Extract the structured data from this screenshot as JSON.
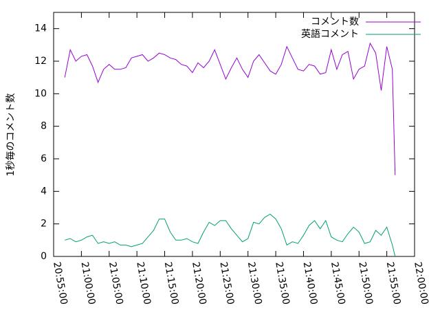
{
  "chart_data": {
    "type": "line",
    "y_label": "1秒毎のコメント数",
    "xlim": [
      "20:55:00",
      "22:00:00"
    ],
    "xticks": [
      "20:55:00",
      "21:00:00",
      "21:05:00",
      "21:10:00",
      "21:15:00",
      "21:20:00",
      "21:25:00",
      "21:30:00",
      "21:35:00",
      "21:40:00",
      "21:45:00",
      "21:50:00",
      "21:55:00",
      "22:00:00"
    ],
    "ylim": [
      0,
      15
    ],
    "yticks": [
      0,
      2,
      4,
      6,
      8,
      10,
      12,
      14
    ],
    "legend": "top-right",
    "x": [
      "20:57:00",
      "20:58:00",
      "20:59:00",
      "21:00:00",
      "21:01:00",
      "21:02:00",
      "21:03:00",
      "21:04:00",
      "21:05:00",
      "21:06:00",
      "21:07:00",
      "21:08:00",
      "21:09:00",
      "21:10:00",
      "21:11:00",
      "21:12:00",
      "21:13:00",
      "21:14:00",
      "21:15:00",
      "21:16:00",
      "21:17:00",
      "21:18:00",
      "21:19:00",
      "21:20:00",
      "21:21:00",
      "21:22:00",
      "21:23:00",
      "21:24:00",
      "21:25:00",
      "21:26:00",
      "21:27:00",
      "21:28:00",
      "21:29:00",
      "21:30:00",
      "21:31:00",
      "21:32:00",
      "21:33:00",
      "21:34:00",
      "21:35:00",
      "21:36:00",
      "21:37:00",
      "21:38:00",
      "21:39:00",
      "21:40:00",
      "21:41:00",
      "21:42:00",
      "21:43:00",
      "21:44:00",
      "21:45:00",
      "21:46:00",
      "21:47:00",
      "21:48:00",
      "21:49:00",
      "21:50:00",
      "21:51:00",
      "21:52:00",
      "21:53:00",
      "21:54:00",
      "21:55:00",
      "21:56:00",
      "21:56:30"
    ],
    "series": [
      {
        "name": "コメント数",
        "color": "#9400d3",
        "values": [
          11.0,
          12.7,
          12.0,
          12.3,
          12.4,
          11.7,
          10.7,
          11.5,
          11.8,
          11.5,
          11.5,
          11.6,
          12.2,
          12.3,
          12.4,
          12.0,
          12.2,
          12.5,
          12.4,
          12.2,
          12.1,
          11.8,
          11.7,
          11.3,
          11.9,
          11.6,
          12.0,
          12.7,
          11.8,
          10.9,
          11.6,
          12.2,
          11.5,
          11.0,
          12.0,
          12.4,
          11.9,
          11.4,
          11.2,
          11.8,
          12.9,
          12.2,
          11.5,
          11.4,
          11.8,
          11.7,
          11.2,
          11.3,
          12.7,
          11.5,
          12.4,
          12.6,
          10.9,
          11.5,
          11.7,
          13.1,
          12.5,
          10.2,
          12.9,
          11.5,
          5.0
        ]
      },
      {
        "name": "英語コメント",
        "color": "#009e73",
        "values": [
          1.0,
          1.1,
          0.9,
          1.0,
          1.2,
          1.3,
          0.8,
          0.9,
          0.8,
          0.9,
          0.7,
          0.7,
          0.6,
          0.7,
          0.8,
          1.2,
          1.6,
          2.3,
          2.3,
          1.5,
          1.0,
          1.0,
          1.1,
          0.9,
          0.8,
          1.5,
          2.1,
          1.9,
          2.2,
          2.2,
          1.7,
          1.3,
          0.9,
          1.1,
          2.1,
          2.0,
          2.4,
          2.6,
          2.3,
          1.7,
          0.7,
          0.9,
          0.8,
          1.3,
          1.9,
          2.2,
          1.7,
          2.2,
          1.2,
          1.0,
          0.9,
          1.4,
          1.8,
          1.5,
          0.8,
          0.9,
          1.6,
          1.3,
          1.8,
          0.7,
          0.0
        ]
      }
    ]
  }
}
